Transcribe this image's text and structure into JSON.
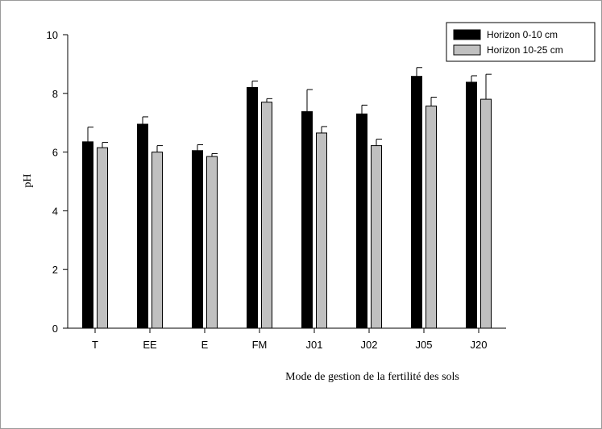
{
  "chart_data": {
    "type": "bar",
    "categories": [
      "T",
      "EE",
      "E",
      "FM",
      "J01",
      "J02",
      "J05",
      "J20"
    ],
    "series": [
      {
        "name": "Horizon 0-10 cm",
        "color": "#000000",
        "values": [
          6.35,
          6.95,
          6.05,
          8.2,
          7.38,
          7.3,
          8.58,
          8.38
        ],
        "errors": [
          0.5,
          0.25,
          0.2,
          0.22,
          0.75,
          0.3,
          0.3,
          0.22
        ]
      },
      {
        "name": "Horizon 10-25 cm",
        "color": "#c0c0c0",
        "values": [
          6.15,
          6.0,
          5.85,
          7.7,
          6.65,
          6.22,
          7.57,
          7.8
        ],
        "errors": [
          0.18,
          0.22,
          0.1,
          0.12,
          0.22,
          0.22,
          0.3,
          0.85
        ]
      }
    ],
    "ylim": [
      0,
      10
    ],
    "yticks": [
      0,
      2,
      4,
      6,
      8,
      10
    ],
    "xlabel": "Mode de gestion de la fertilité des sols",
    "ylabel": "pH",
    "legend_position": "top-right",
    "grid": false
  }
}
